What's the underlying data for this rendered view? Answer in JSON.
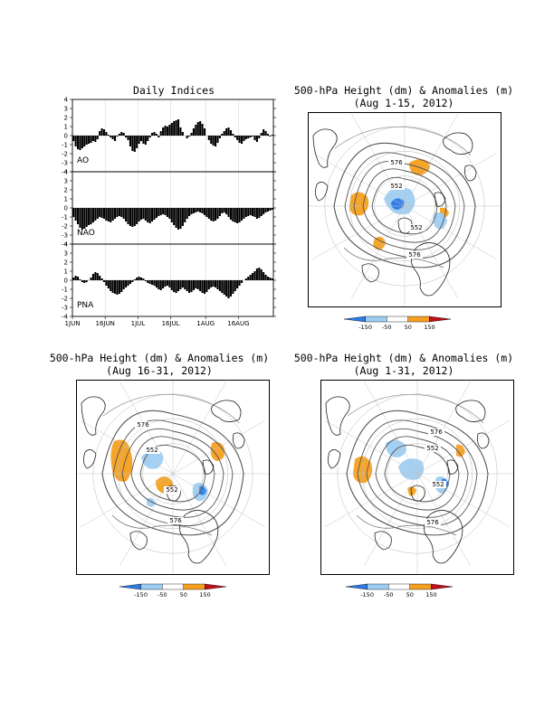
{
  "panels": {
    "indices": {
      "title": "Daily Indices",
      "y_ticks": [
        "4",
        "3",
        "2",
        "1",
        "0",
        "-1",
        "-2",
        "-3",
        "-4"
      ],
      "x_ticks": [
        "1JUN",
        "16JUN",
        "1JUL",
        "16JUL",
        "1AUG",
        "16AUG"
      ]
    },
    "map_aug1_15": {
      "title_line1": "500-hPa Height (dm) & Anomalies (m)",
      "title_line2": "(Aug 1-15, 2012)"
    },
    "map_aug16_31": {
      "title_line1": "500-hPa Height (dm) & Anomalies (m)",
      "title_line2": "(Aug 16-31, 2012)"
    },
    "map_aug1_31": {
      "title_line1": "500-hPa Height (dm) & Anomalies (m)",
      "title_line2": "(Aug 1-31, 2012)"
    }
  },
  "contour_labels": [
    "576",
    "552",
    "552",
    "576"
  ],
  "colorbar": {
    "labels": [
      "-150",
      "-50",
      "50",
      "150"
    ],
    "colors": [
      "#2c7be5",
      "#9ecdf2",
      "#ffffff",
      "#f5a020",
      "#c0101a"
    ]
  },
  "chart_data": [
    {
      "type": "bar",
      "title": "Daily Indices",
      "series": [
        {
          "name": "AO",
          "ylim": [
            -4,
            4
          ],
          "x_start": "2012-06-01",
          "values": [
            -0.6,
            -1.2,
            -1.5,
            -1.6,
            -1.4,
            -1.2,
            -1.0,
            -0.9,
            -0.8,
            -0.6,
            -0.7,
            -0.4,
            0.5,
            0.8,
            0.7,
            0.4,
            0.1,
            -0.2,
            -0.4,
            -0.6,
            -0.1,
            0.2,
            0.4,
            0.3,
            -0.2,
            -0.5,
            -1.2,
            -1.7,
            -1.8,
            -1.4,
            -0.9,
            -0.6,
            -0.9,
            -1.0,
            -0.6,
            -0.2,
            0.3,
            0.4,
            0.2,
            -0.2,
            0.5,
            0.9,
            1.1,
            1.0,
            1.2,
            1.4,
            1.6,
            1.7,
            1.8,
            0.9,
            0.4,
            0.0,
            -0.3,
            -0.1,
            0.3,
            0.8,
            1.2,
            1.5,
            1.6,
            1.3,
            0.8,
            0.0,
            -0.5,
            -0.9,
            -1.1,
            -1.2,
            -0.8,
            -0.3,
            0.2,
            0.5,
            0.8,
            0.9,
            0.6,
            0.2,
            -0.2,
            -0.5,
            -0.8,
            -0.9,
            -0.6,
            -0.4,
            -0.3,
            -0.2,
            -0.1,
            -0.5,
            -0.7,
            -0.3,
            0.3,
            0.7,
            0.5,
            0.2,
            -0.1,
            0.1
          ]
        },
        {
          "name": "NAO",
          "ylim": [
            -4,
            4
          ],
          "x_start": "2012-06-01",
          "values": [
            -1.0,
            -1.4,
            -1.8,
            -2.2,
            -2.4,
            -2.3,
            -2.1,
            -1.9,
            -1.8,
            -1.6,
            -1.4,
            -1.2,
            -1.0,
            -1.1,
            -1.2,
            -1.4,
            -1.5,
            -1.6,
            -1.4,
            -1.2,
            -1.0,
            -0.9,
            -1.0,
            -1.2,
            -1.5,
            -1.8,
            -2.0,
            -2.1,
            -2.0,
            -1.8,
            -1.5,
            -1.3,
            -1.2,
            -1.4,
            -1.6,
            -1.7,
            -1.5,
            -1.3,
            -1.1,
            -0.9,
            -0.8,
            -0.7,
            -0.8,
            -1.0,
            -1.2,
            -1.6,
            -1.9,
            -2.2,
            -2.4,
            -2.3,
            -2.0,
            -1.6,
            -1.2,
            -0.9,
            -0.7,
            -0.6,
            -0.5,
            -0.4,
            -0.5,
            -0.6,
            -0.8,
            -1.0,
            -1.2,
            -1.4,
            -1.5,
            -1.4,
            -1.2,
            -0.9,
            -0.6,
            -0.5,
            -0.7,
            -1.0,
            -1.3,
            -1.5,
            -1.6,
            -1.7,
            -1.6,
            -1.4,
            -1.2,
            -1.0,
            -0.9,
            -0.8,
            -0.9,
            -1.0,
            -1.2,
            -1.1,
            -0.9,
            -0.7,
            -0.5,
            -0.4,
            -0.3,
            -0.2
          ]
        },
        {
          "name": "PNA",
          "ylim": [
            -4,
            4
          ],
          "x_start": "2012-06-01",
          "values": [
            0.3,
            0.5,
            0.4,
            0.1,
            -0.2,
            -0.3,
            -0.2,
            0.0,
            0.3,
            0.7,
            0.9,
            0.8,
            0.5,
            0.2,
            -0.2,
            -0.6,
            -0.9,
            -1.2,
            -1.4,
            -1.5,
            -1.6,
            -1.5,
            -1.3,
            -1.0,
            -0.8,
            -0.6,
            -0.4,
            -0.2,
            0.1,
            0.3,
            0.4,
            0.3,
            0.2,
            -0.1,
            -0.3,
            -0.4,
            -0.5,
            -0.6,
            -0.8,
            -1.0,
            -1.1,
            -0.9,
            -0.7,
            -0.6,
            -0.8,
            -1.1,
            -1.3,
            -1.4,
            -1.2,
            -1.0,
            -0.8,
            -1.0,
            -1.2,
            -1.4,
            -1.3,
            -1.1,
            -0.9,
            -1.0,
            -1.2,
            -1.4,
            -1.5,
            -1.3,
            -1.0,
            -0.8,
            -0.7,
            -0.8,
            -1.0,
            -1.2,
            -1.4,
            -1.6,
            -1.8,
            -2.0,
            -1.8,
            -1.5,
            -1.2,
            -0.9,
            -0.6,
            -0.3,
            0.0,
            0.2,
            0.4,
            0.6,
            0.8,
            1.0,
            1.3,
            1.4,
            1.2,
            0.9,
            0.6,
            0.4,
            0.3,
            0.2
          ]
        }
      ],
      "xlim": [
        "2012-06-01",
        "2012-08-31"
      ],
      "x_tick_labels": [
        "1JUN",
        "16JUN",
        "1JUL",
        "16JUL",
        "1AUG",
        "16AUG"
      ],
      "grid": true
    },
    {
      "type": "heatmap",
      "title": "500-hPa Height (dm) & Anomalies (m) (Aug 1-15, 2012)",
      "contour_labels": [
        "576",
        "552",
        "552",
        "576"
      ],
      "colorbar_levels": [
        -150,
        -50,
        50,
        150
      ]
    },
    {
      "type": "heatmap",
      "title": "500-hPa Height (dm) & Anomalies (m) (Aug 16-31, 2012)",
      "contour_labels": [
        "576",
        "552",
        "552",
        "576"
      ],
      "colorbar_levels": [
        -150,
        -50,
        50,
        150
      ]
    },
    {
      "type": "heatmap",
      "title": "500-hPa Height (dm) & Anomalies (m) (Aug 1-31, 2012)",
      "contour_labels": [
        "576",
        "552",
        "552",
        "576"
      ],
      "colorbar_levels": [
        -150,
        -50,
        50,
        150
      ]
    }
  ]
}
